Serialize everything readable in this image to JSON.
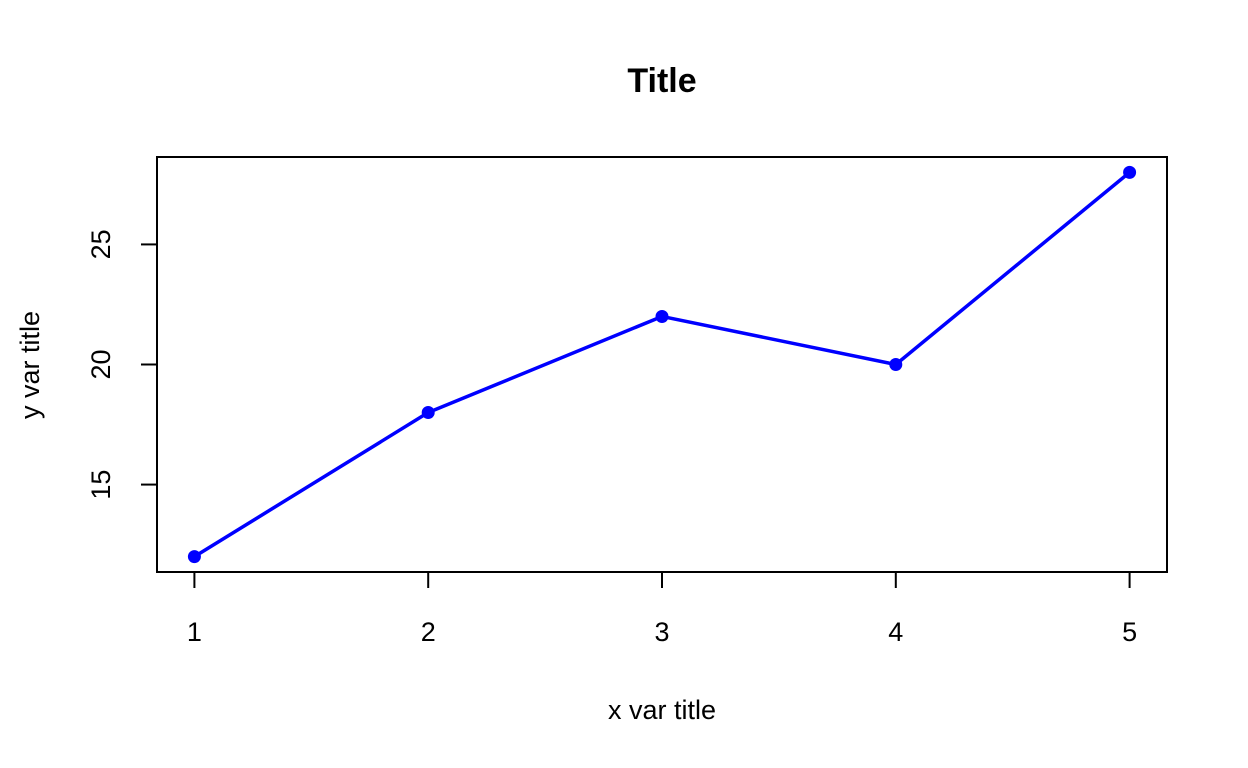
{
  "chart_data": {
    "type": "line",
    "title": "Title",
    "xlabel": "x var title",
    "ylabel": "y var title",
    "x": [
      1,
      2,
      3,
      4,
      5
    ],
    "x_ticks": [
      "1",
      "2",
      "3",
      "4",
      "5"
    ],
    "y_ticks": [
      "15",
      "20",
      "25"
    ],
    "xlim": [
      0.84,
      5.16
    ],
    "ylim": [
      11.36,
      28.64
    ],
    "grid": false,
    "series": [
      {
        "values": [
          12,
          18,
          22,
          20,
          28
        ],
        "color": "#0000ff",
        "markers": true
      }
    ]
  }
}
